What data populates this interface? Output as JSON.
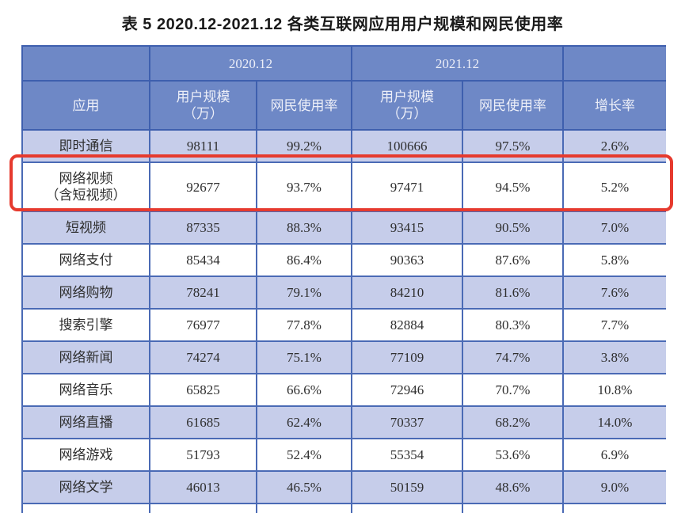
{
  "title": "表 5  2020.12-2021.12 各类互联网应用用户规模和网民使用率",
  "colors": {
    "header_bg": "#6e88c6",
    "header_border": "#3e5fae",
    "header_text": "#edeff8",
    "row_alt_bg": "#c6cdea",
    "row_white_bg": "#ffffff",
    "grid_line": "#4a6ab5",
    "body_text": "#2f2f2f",
    "highlight_red": "#e63a2e"
  },
  "table": {
    "header": {
      "period_2020": "2020.12",
      "period_2021": "2021.12",
      "app": "应用",
      "user_scale": "用户规模\n（万）",
      "usage_rate": "网民使用率",
      "growth_rate": "增长率"
    },
    "columns": [
      "app",
      "s2020",
      "u2020",
      "s2021",
      "u2021",
      "growth"
    ],
    "rows": [
      {
        "app": "即时通信",
        "s2020": "98111",
        "u2020": "99.2%",
        "s2021": "100666",
        "u2021": "97.5%",
        "growth": "2.6%",
        "shade": "light",
        "highlight": false
      },
      {
        "app": "网络视频\n（含短视频）",
        "s2020": "92677",
        "u2020": "93.7%",
        "s2021": "97471",
        "u2021": "94.5%",
        "growth": "5.2%",
        "shade": "white",
        "highlight": true
      },
      {
        "app": "短视频",
        "s2020": "87335",
        "u2020": "88.3%",
        "s2021": "93415",
        "u2021": "90.5%",
        "growth": "7.0%",
        "shade": "light",
        "highlight": false
      },
      {
        "app": "网络支付",
        "s2020": "85434",
        "u2020": "86.4%",
        "s2021": "90363",
        "u2021": "87.6%",
        "growth": "5.8%",
        "shade": "white",
        "highlight": false
      },
      {
        "app": "网络购物",
        "s2020": "78241",
        "u2020": "79.1%",
        "s2021": "84210",
        "u2021": "81.6%",
        "growth": "7.6%",
        "shade": "light",
        "highlight": false
      },
      {
        "app": "搜索引擎",
        "s2020": "76977",
        "u2020": "77.8%",
        "s2021": "82884",
        "u2021": "80.3%",
        "growth": "7.7%",
        "shade": "white",
        "highlight": false
      },
      {
        "app": "网络新闻",
        "s2020": "74274",
        "u2020": "75.1%",
        "s2021": "77109",
        "u2021": "74.7%",
        "growth": "3.8%",
        "shade": "light",
        "highlight": false
      },
      {
        "app": "网络音乐",
        "s2020": "65825",
        "u2020": "66.6%",
        "s2021": "72946",
        "u2021": "70.7%",
        "growth": "10.8%",
        "shade": "white",
        "highlight": false
      },
      {
        "app": "网络直播",
        "s2020": "61685",
        "u2020": "62.4%",
        "s2021": "70337",
        "u2021": "68.2%",
        "growth": "14.0%",
        "shade": "light",
        "highlight": false
      },
      {
        "app": "网络游戏",
        "s2020": "51793",
        "u2020": "52.4%",
        "s2021": "55354",
        "u2021": "53.6%",
        "growth": "6.9%",
        "shade": "white",
        "highlight": false
      },
      {
        "app": "网络文学",
        "s2020": "46013",
        "u2020": "46.5%",
        "s2021": "50159",
        "u2021": "48.6%",
        "growth": "9.0%",
        "shade": "light",
        "highlight": false
      },
      {
        "app": "",
        "s2020": "",
        "u2020": "",
        "s2021": "",
        "u2021": "",
        "growth": "",
        "shade": "white partial",
        "highlight": false
      }
    ]
  }
}
